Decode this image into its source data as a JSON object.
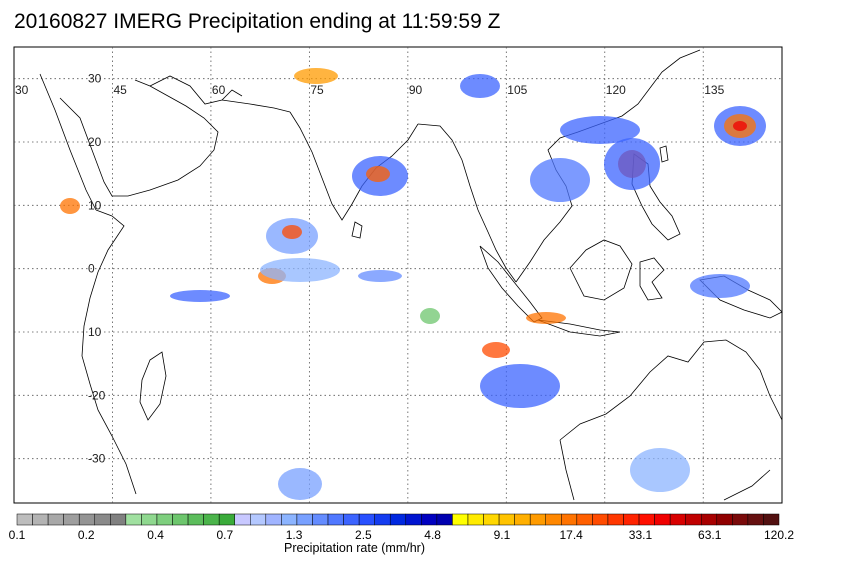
{
  "title": "20160827 IMERG Precipitation ending at 11:59:59 Z",
  "map": {
    "lon_labels": [
      {
        "lon": 30,
        "text": "30"
      },
      {
        "lon": 45,
        "text": "45"
      },
      {
        "lon": 60,
        "text": "60"
      },
      {
        "lon": 75,
        "text": "75"
      },
      {
        "lon": 90,
        "text": "90"
      },
      {
        "lon": 105,
        "text": "105"
      },
      {
        "lon": 120,
        "text": "120"
      },
      {
        "lon": 135,
        "text": "135"
      }
    ],
    "lat_labels": [
      {
        "lat": 30,
        "text": "30"
      },
      {
        "lat": 20,
        "text": "20"
      },
      {
        "lat": 10,
        "text": "10"
      },
      {
        "lat": 0,
        "text": "0"
      },
      {
        "lat": -10,
        "text": "10"
      },
      {
        "lat": -20,
        "text": "-20"
      },
      {
        "lat": -30,
        "text": "-30"
      }
    ],
    "lon_range": [
      30,
      147
    ],
    "lat_range": [
      -37,
      35
    ],
    "grid": true,
    "gridlines_lon": [
      45,
      60,
      75,
      90,
      105,
      120,
      135
    ],
    "gridlines_lat": [
      30,
      20,
      10,
      0,
      -10,
      -20,
      -30
    ]
  },
  "colorbar": {
    "label": "Precipitation rate (mm/hr)",
    "tick_labels": [
      "0.1",
      "0.2",
      "0.4",
      "0.7",
      "1.3",
      "2.5",
      "4.8",
      "9.1",
      "17.4",
      "33.1",
      "63.1",
      "120.2"
    ],
    "colors": [
      "#bdbdbd",
      "#b3b3b3",
      "#a8a8a8",
      "#9e9e9e",
      "#949494",
      "#8a8a8a",
      "#808080",
      "#a0e0a0",
      "#8fd88f",
      "#7ecf7e",
      "#6dc66d",
      "#5cbd5c",
      "#4bb44b",
      "#3aab3a",
      "#c8c8ff",
      "#b4c8ff",
      "#a0b4ff",
      "#8cb4ff",
      "#78a0ff",
      "#648cff",
      "#5078ff",
      "#3c64ff",
      "#2850ff",
      "#143cf0",
      "#0028e0",
      "#0014d0",
      "#0000c0",
      "#0000b0",
      "#ffff00",
      "#ffeb00",
      "#ffd700",
      "#ffc300",
      "#ffaf00",
      "#ff9b00",
      "#ff8700",
      "#ff7300",
      "#ff5f00",
      "#ff4b00",
      "#ff3700",
      "#ff2300",
      "#ff0f00",
      "#f00000",
      "#d80000",
      "#c00000",
      "#a80000",
      "#900000",
      "#7a0a0a",
      "#661010",
      "#521010"
    ]
  }
}
